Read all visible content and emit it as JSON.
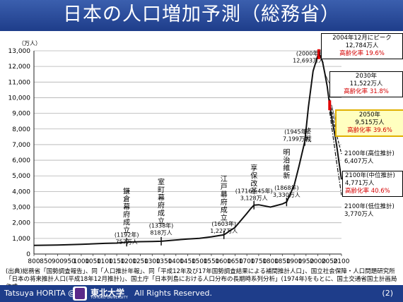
{
  "title": "日本の人口増加予測（総務省）",
  "footer": {
    "author": "Tatsuya HORITA @",
    "university": "東北大学",
    "university_en": "TOHOKU UNIVERSITY",
    "rights": "All Rights Reserved.",
    "page": "(2)"
  },
  "source": "(出典)総務省「国勢調査報告」、同「人口推計年報」、同「平成12年及び17年国勢調査結果による補間推計人口」、国立社会保障・人口問題研究所「日本の将来推計人口(平成18年12月推計)」、国土庁「日本列島における人口分布の長期時系列分析」(1974年)をもとに、国土交通省国土計画局作成",
  "chart_data": {
    "type": "line",
    "ylabel": "（万人）",
    "xlim": [
      800,
      2100
    ],
    "ylim": [
      0,
      13000
    ],
    "x_ticks": [
      800,
      850,
      900,
      950,
      1000,
      1050,
      1100,
      1150,
      1200,
      1250,
      1300,
      1350,
      1400,
      1450,
      1500,
      1550,
      1600,
      1650,
      1700,
      1750,
      1800,
      1850,
      1900,
      1950,
      2000,
      2050,
      2100
    ],
    "y_ticks": [
      0,
      1000,
      2000,
      3000,
      4000,
      5000,
      6000,
      7000,
      8000,
      9000,
      10000,
      11000,
      12000,
      13000
    ],
    "y_tick_labels": [
      "0",
      "1,000",
      "2,000",
      "3,000",
      "4,000",
      "5,000",
      "6,000",
      "7,000",
      "8,000",
      "9,000",
      "10,000",
      "11,000",
      "12,000",
      "13,000"
    ],
    "series": [
      {
        "points": [
          [
            800,
            551
          ],
          [
            900,
            580
          ],
          [
            1000,
            620
          ],
          [
            1100,
            680
          ],
          [
            1150,
            700
          ],
          [
            1192,
            757
          ],
          [
            1250,
            790
          ],
          [
            1300,
            805
          ],
          [
            1338,
            818
          ],
          [
            1400,
            900
          ],
          [
            1450,
            960
          ],
          [
            1500,
            1000
          ],
          [
            1550,
            1100
          ],
          [
            1603,
            1227
          ],
          [
            1650,
            1700
          ],
          [
            1700,
            2600
          ],
          [
            1716,
            2900
          ],
          [
            1730,
            3128
          ],
          [
            1750,
            3150
          ],
          [
            1800,
            3000
          ],
          [
            1850,
            3200
          ],
          [
            1868,
            3330
          ],
          [
            1900,
            4400
          ],
          [
            1920,
            5600
          ],
          [
            1945,
            7199
          ],
          [
            1960,
            9400
          ],
          [
            1980,
            11700
          ],
          [
            2000,
            12693
          ],
          [
            2004,
            12784
          ],
          [
            2010,
            12700
          ],
          [
            2020,
            12300
          ],
          [
            2030,
            11522
          ],
          [
            2040,
            10700
          ],
          [
            2050,
            9515
          ],
          [
            2060,
            8600
          ],
          [
            2070,
            7800
          ],
          [
            2080,
            6900
          ],
          [
            2090,
            5800
          ],
          [
            2100,
            4771
          ]
        ]
      },
      {
        "style": "dashed",
        "points": [
          [
            2050,
            9900
          ],
          [
            2060,
            9100
          ],
          [
            2070,
            8300
          ],
          [
            2080,
            7600
          ],
          [
            2090,
            7000
          ],
          [
            2100,
            6407
          ]
        ]
      },
      {
        "style": "dashdot",
        "points": [
          [
            2050,
            9100
          ],
          [
            2060,
            8000
          ],
          [
            2070,
            6900
          ],
          [
            2080,
            5800
          ],
          [
            2090,
            4800
          ],
          [
            2100,
            3770
          ]
        ]
      }
    ],
    "markers": [
      {
        "x": 1192,
        "y": 757
      },
      {
        "x": 1338,
        "y": 818
      },
      {
        "x": 1603,
        "y": 1227
      },
      {
        "x": 1730,
        "y": 3128
      },
      {
        "x": 1868,
        "y": 3330
      },
      {
        "x": 1945,
        "y": 7199
      }
    ],
    "annotations": [
      {
        "lines": [
          "鎌",
          "倉",
          "幕",
          "府",
          "成",
          "立"
        ],
        "vertical": true,
        "x": 1192,
        "y_top": 3850
      },
      {
        "lines": [
          "(1192年)",
          "757万人"
        ],
        "x": 1192,
        "y": 1100
      },
      {
        "lines": [
          "室",
          "町",
          "幕",
          "府",
          "成",
          "立"
        ],
        "vertical": true,
        "x": 1338,
        "y_top": 4450
      },
      {
        "lines": [
          "(1338年)",
          "818万人"
        ],
        "x": 1338,
        "y": 1700
      },
      {
        "lines": [
          "江",
          "戸",
          "幕",
          "府",
          "成",
          "立"
        ],
        "vertical": true,
        "x": 1603,
        "y_top": 4650
      },
      {
        "lines": [
          "(1603年)",
          "1,227万人"
        ],
        "x": 1603,
        "y": 1800
      },
      {
        "lines": [
          "享",
          "保",
          "改",
          "革"
        ],
        "vertical": true,
        "x": 1730,
        "y_top": 5350
      },
      {
        "lines": [
          "(1716～45年)",
          "3,128万人"
        ],
        "x": 1730,
        "y": 3900
      },
      {
        "lines": [
          "明",
          "治",
          "維",
          "新"
        ],
        "vertical": true,
        "x": 1868,
        "y_top": 6350
      },
      {
        "lines": [
          "(1868年)",
          "3,330万人"
        ],
        "x": 1868,
        "y": 4100
      },
      {
        "lines": [
          "終",
          "戦"
        ],
        "vertical": true,
        "x": 1958,
        "y_top": 7700
      },
      {
        "lines": [
          "(1945年)",
          "7,199万人"
        ],
        "x": 1910,
        "y": 7700
      },
      {
        "lines": [
          "(2000年)",
          "12,693万人"
        ],
        "x": 1960,
        "y": 12700
      }
    ],
    "boxes": [
      {
        "id": "peak",
        "lines": [
          "2004年12月にピーク",
          "12,784万人"
        ],
        "red": "高齢化率 19.6%"
      },
      {
        "id": "y2030",
        "lines": [
          "2030年",
          "11,522万人"
        ],
        "red": "高齢化率 31.8%"
      },
      {
        "id": "y2050",
        "lines": [
          "2050年",
          "9,515万人"
        ],
        "red": "高齢化率 39.6%"
      },
      {
        "id": "high",
        "lines": [
          "2100年(高位推計)",
          "6,407万人"
        ],
        "red": ""
      },
      {
        "id": "mid",
        "lines": [
          "2100年(中位推計)",
          "4,771万人"
        ],
        "red": "高齢化率 40.6%"
      },
      {
        "id": "low",
        "lines": [
          "2100年(低位推計)",
          "3,770万人"
        ],
        "red": ""
      }
    ]
  }
}
